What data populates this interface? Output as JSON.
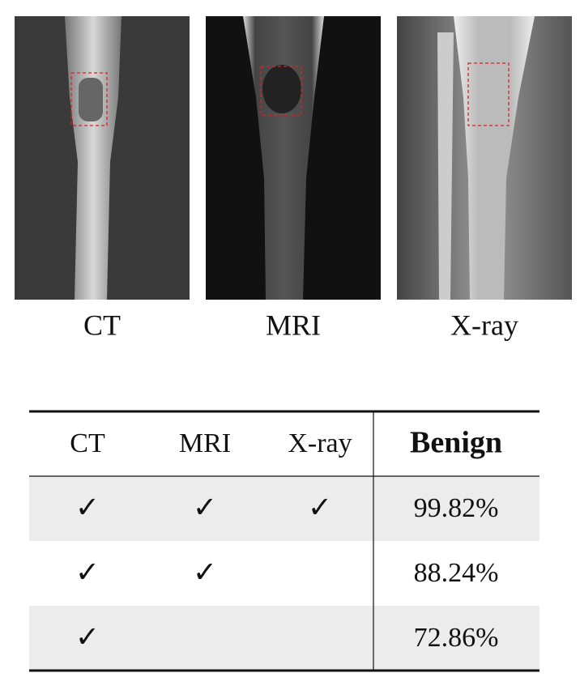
{
  "images": [
    {
      "label": "CT"
    },
    {
      "label": "MRI"
    },
    {
      "label": "X-ray"
    }
  ],
  "table": {
    "header": [
      "CT",
      "MRI",
      "X-ray",
      "Benign"
    ],
    "rows": [
      [
        "✓",
        "✓",
        "✓",
        "99.82%"
      ],
      [
        "✓",
        "✓",
        null,
        "88.24%"
      ],
      [
        "✓",
        null,
        null,
        "72.86%"
      ]
    ]
  }
}
